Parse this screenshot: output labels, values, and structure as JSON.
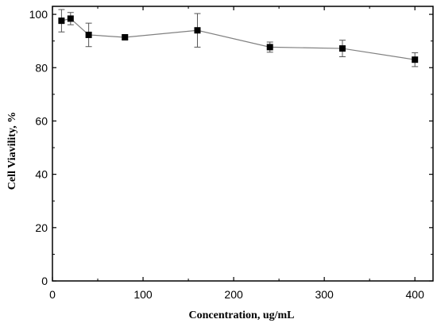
{
  "chart_data": {
    "type": "scatter",
    "xlabel": "Concentration, ug/mL",
    "ylabel": "Cell Viavility, %",
    "xlim": [
      0,
      420
    ],
    "ylim": [
      0,
      103
    ],
    "xticks": [
      0,
      100,
      200,
      300,
      400
    ],
    "yticks": [
      0,
      20,
      40,
      60,
      80,
      100
    ],
    "grid": false,
    "series": [
      {
        "x": [
          10,
          20,
          40,
          80,
          160,
          240,
          320,
          400
        ],
        "y": [
          97.6,
          98.4,
          92.3,
          91.4,
          94.0,
          87.7,
          87.2,
          83.0
        ],
        "yerr": [
          4.2,
          2.3,
          4.4,
          0.8,
          6.3,
          1.9,
          3.1,
          2.6
        ],
        "marker": "square",
        "color": "#000000",
        "line_color": "#808080"
      }
    ]
  }
}
